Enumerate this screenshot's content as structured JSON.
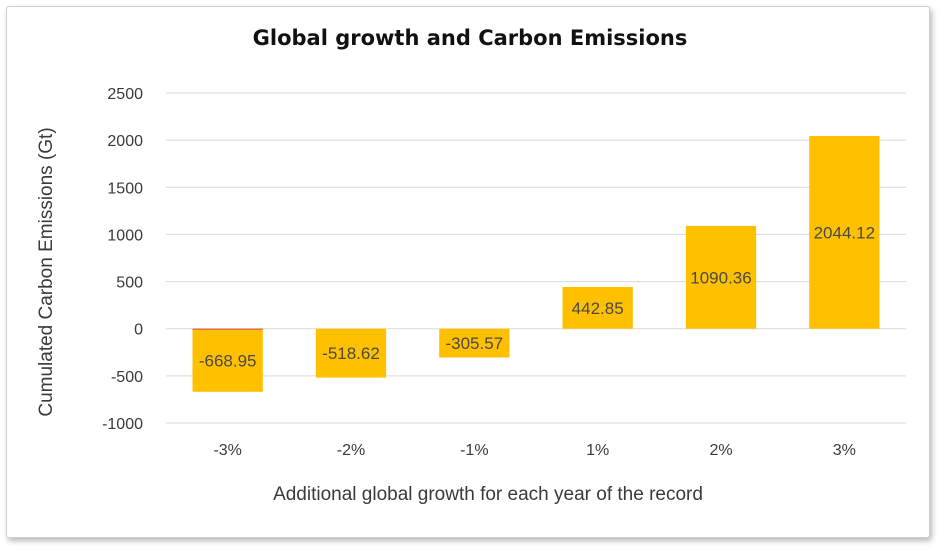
{
  "chart_data": {
    "type": "bar",
    "title": "Global growth and Carbon Emissions",
    "xlabel": "Additional global growth for each year of the record",
    "ylabel": "Cumulated Carbon Emissions (Gt)",
    "categories": [
      "-3%",
      "-2%",
      "-1%",
      "1%",
      "2%",
      "3%"
    ],
    "values": [
      -668.95,
      -518.62,
      -305.57,
      442.85,
      1090.36,
      2044.12
    ],
    "data_labels": [
      "-668.95",
      "-518.62",
      "-305.57",
      "442.85",
      "1090.36",
      "2044.12"
    ],
    "ylim": [
      -1000,
      2500
    ],
    "yticks": [
      -1000,
      -500,
      0,
      500,
      1000,
      1500,
      2000,
      2500
    ],
    "grid": true,
    "legend": "none",
    "bar_color": "#FFC000",
    "zero_line_accent": "#E8704A"
  }
}
